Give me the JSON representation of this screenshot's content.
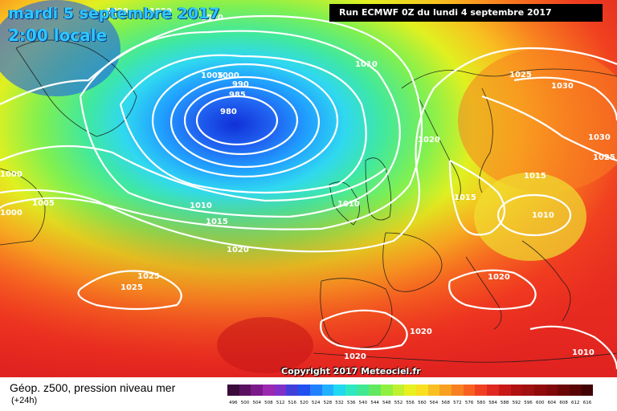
{
  "title": {
    "date": "mardi 5 septembre 2017",
    "time": "2:00 locale"
  },
  "run_info": "Run ECMWF 0Z du lundi 4 septembre 2017",
  "copyright": "Copyright 2017 Meteociel.fr",
  "legend": {
    "title": "Géop. z500, pression niveau mer",
    "subtitle": "(+24h)",
    "scale_values": [
      "496",
      "500",
      "504",
      "508",
      "512",
      "516",
      "520",
      "524",
      "528",
      "532",
      "536",
      "540",
      "544",
      "548",
      "552",
      "556",
      "560",
      "564",
      "568",
      "572",
      "576",
      "580",
      "584",
      "588",
      "592",
      "596",
      "600",
      "604",
      "608",
      "612",
      "616"
    ],
    "scale_colors": [
      "#3a0a3a",
      "#5a1060",
      "#7a1a8a",
      "#9a28b0",
      "#8030c8",
      "#4040d8",
      "#2050f0",
      "#2080ff",
      "#20b0ff",
      "#20d8f0",
      "#30e8c0",
      "#40e890",
      "#60e860",
      "#90f040",
      "#c0f030",
      "#e8f020",
      "#f8e020",
      "#f8c020",
      "#f8a020",
      "#f88020",
      "#f86020",
      "#f04020",
      "#e02820",
      "#c81818",
      "#b01010",
      "#a01010",
      "#900a0a",
      "#800808",
      "#6a0606",
      "#580404",
      "#400202"
    ]
  },
  "isobar_labels": [
    {
      "text": "1020"
    },
    {
      "text": "1020"
    },
    {
      "text": "1020"
    },
    {
      "text": "1005"
    },
    {
      "text": "1000"
    },
    {
      "text": "990"
    },
    {
      "text": "985"
    },
    {
      "text": "980"
    },
    {
      "text": "1010"
    },
    {
      "text": "1025"
    },
    {
      "text": "1030"
    },
    {
      "text": "1020"
    },
    {
      "text": "1030"
    },
    {
      "text": "1025"
    },
    {
      "text": "1015"
    },
    {
      "text": "1015"
    },
    {
      "text": "1010"
    },
    {
      "text": "1010"
    },
    {
      "text": "1010"
    },
    {
      "text": "1015"
    },
    {
      "text": "1005"
    },
    {
      "text": "1000"
    },
    {
      "text": "1000"
    },
    {
      "text": "1020"
    },
    {
      "text": "1025"
    },
    {
      "text": "1025"
    },
    {
      "text": "1020"
    },
    {
      "text": "1020"
    },
    {
      "text": "1020"
    },
    {
      "text": "1010"
    }
  ]
}
